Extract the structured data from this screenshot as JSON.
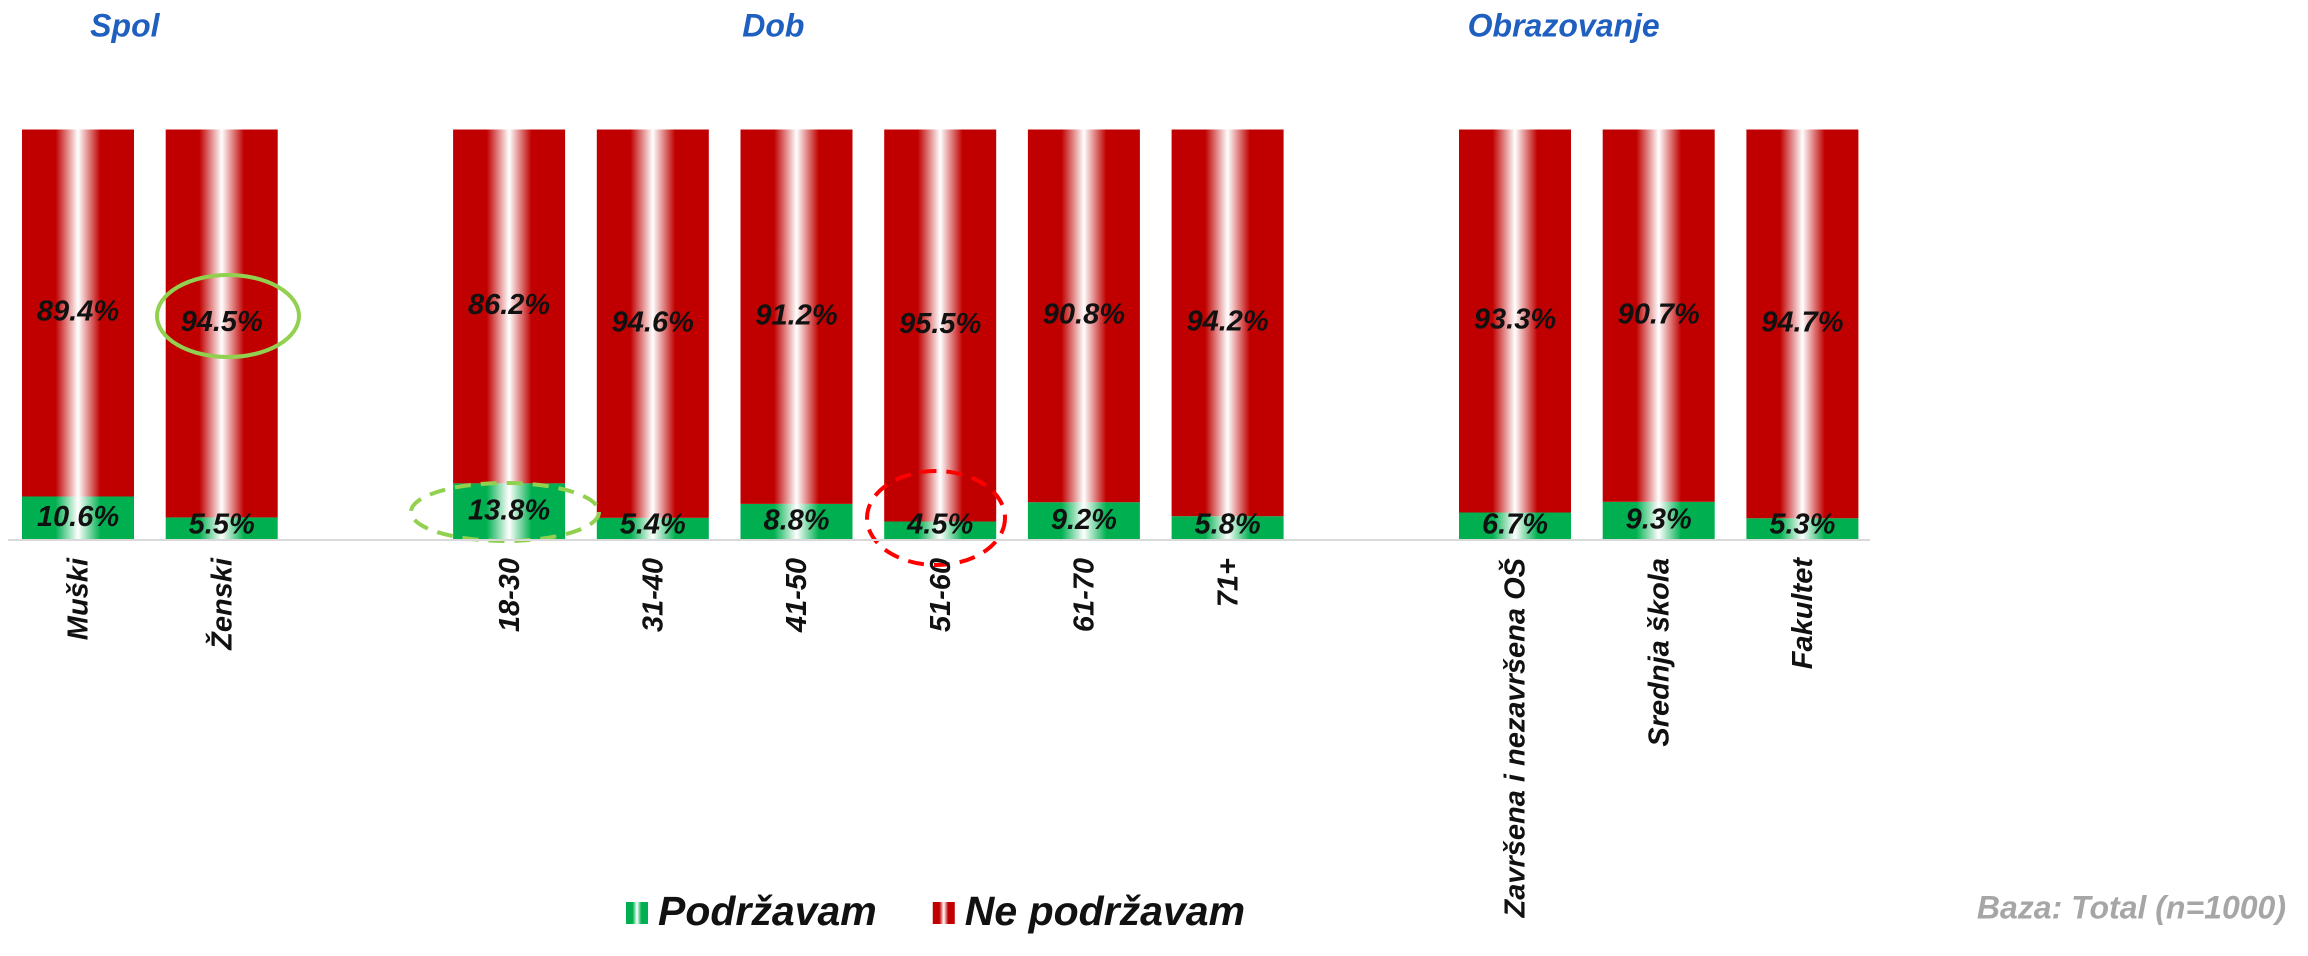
{
  "chart_data": {
    "type": "stacked_bar",
    "groups": [
      {
        "title": "Spol",
        "categories": [
          "Muški",
          "Ženski"
        ]
      },
      {
        "title": "Dob",
        "categories": [
          "18-30",
          "31-40",
          "41-50",
          "51-60",
          "61-70",
          "71+"
        ]
      },
      {
        "title": "Obrazovanje",
        "categories": [
          "Završena i nezavršena OŠ",
          "Srednja škola",
          "Fakultet"
        ]
      }
    ],
    "series": [
      {
        "name": "Podržavam",
        "color": "#00b050",
        "values": [
          10.6,
          5.5,
          13.8,
          5.4,
          8.8,
          4.5,
          9.2,
          5.8,
          6.7,
          9.3,
          5.3
        ],
        "value_labels": [
          "10.6%",
          "5.5%",
          "13.8%",
          "5.4%",
          "8.8%",
          "4.5%",
          "9.2%",
          "5.8%",
          "6.7%",
          "9.3%",
          "5.3%"
        ]
      },
      {
        "name": "Ne podržavam",
        "color": "#c00000",
        "values": [
          89.4,
          94.5,
          86.2,
          94.6,
          91.2,
          95.5,
          90.8,
          94.2,
          93.3,
          90.7,
          94.7
        ],
        "value_labels": [
          "89.4%",
          "94.5%",
          "86.2%",
          "94.6%",
          "91.2%",
          "95.5%",
          "90.8%",
          "94.2%",
          "93.3%",
          "90.7%",
          "94.7%"
        ]
      }
    ],
    "ylim": [
      0,
      100
    ],
    "legend": "bottom",
    "note": "Baza: Total (n=1000)"
  }
}
